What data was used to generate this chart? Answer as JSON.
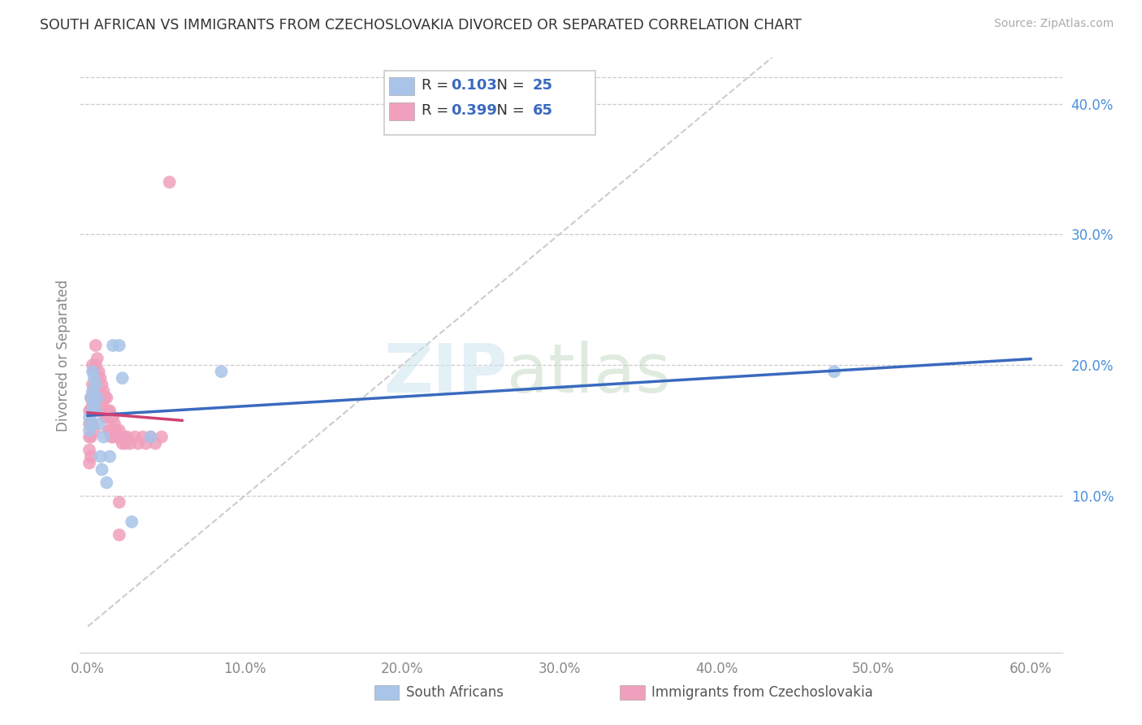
{
  "title": "SOUTH AFRICAN VS IMMIGRANTS FROM CZECHOSLOVAKIA DIVORCED OR SEPARATED CORRELATION CHART",
  "source": "Source: ZipAtlas.com",
  "ylabel": "Divorced or Separated",
  "series1_label": "South Africans",
  "series1_color": "#a8c4e8",
  "series1_line_color": "#3a6abf",
  "series1_R": "0.103",
  "series1_N": "25",
  "series2_label": "Immigrants from Czechoslovakia",
  "series2_color": "#f0a0bc",
  "series2_line_color": "#d04070",
  "series2_R": "0.399",
  "series2_N": "65",
  "xlim": [
    -0.005,
    0.62
  ],
  "ylim": [
    -0.02,
    0.435
  ],
  "xticks": [
    0.0,
    0.1,
    0.2,
    0.3,
    0.4,
    0.5,
    0.6
  ],
  "yticks": [
    0.1,
    0.2,
    0.3,
    0.4
  ],
  "right_yticks": [
    0.1,
    0.2,
    0.3,
    0.4
  ],
  "background_color": "#ffffff",
  "grid_color": "#cccccc",
  "series1_x": [
    0.001,
    0.001,
    0.002,
    0.002,
    0.003,
    0.003,
    0.003,
    0.004,
    0.004,
    0.005,
    0.005,
    0.006,
    0.007,
    0.008,
    0.009,
    0.01,
    0.012,
    0.014,
    0.016,
    0.02,
    0.022,
    0.028,
    0.04,
    0.085,
    0.475
  ],
  "series1_y": [
    0.16,
    0.15,
    0.175,
    0.155,
    0.195,
    0.18,
    0.165,
    0.19,
    0.17,
    0.185,
    0.165,
    0.175,
    0.155,
    0.13,
    0.12,
    0.145,
    0.11,
    0.13,
    0.215,
    0.215,
    0.19,
    0.08,
    0.145,
    0.195,
    0.195
  ],
  "series2_x": [
    0.001,
    0.001,
    0.001,
    0.001,
    0.001,
    0.002,
    0.002,
    0.002,
    0.002,
    0.002,
    0.003,
    0.003,
    0.003,
    0.003,
    0.004,
    0.004,
    0.004,
    0.004,
    0.005,
    0.005,
    0.005,
    0.005,
    0.006,
    0.006,
    0.006,
    0.007,
    0.007,
    0.008,
    0.008,
    0.009,
    0.009,
    0.01,
    0.01,
    0.011,
    0.011,
    0.012,
    0.012,
    0.013,
    0.013,
    0.014,
    0.014,
    0.015,
    0.015,
    0.016,
    0.016,
    0.017,
    0.018,
    0.019,
    0.02,
    0.021,
    0.022,
    0.023,
    0.024,
    0.025,
    0.027,
    0.03,
    0.032,
    0.035,
    0.037,
    0.04,
    0.043,
    0.047,
    0.052,
    0.02,
    0.02
  ],
  "series2_y": [
    0.165,
    0.155,
    0.145,
    0.135,
    0.125,
    0.175,
    0.165,
    0.155,
    0.145,
    0.13,
    0.2,
    0.185,
    0.17,
    0.155,
    0.195,
    0.18,
    0.165,
    0.15,
    0.215,
    0.2,
    0.185,
    0.17,
    0.205,
    0.19,
    0.175,
    0.195,
    0.18,
    0.19,
    0.175,
    0.185,
    0.17,
    0.18,
    0.165,
    0.175,
    0.16,
    0.175,
    0.16,
    0.165,
    0.15,
    0.165,
    0.15,
    0.16,
    0.145,
    0.16,
    0.145,
    0.155,
    0.15,
    0.145,
    0.15,
    0.145,
    0.14,
    0.145,
    0.14,
    0.145,
    0.14,
    0.145,
    0.14,
    0.145,
    0.14,
    0.145,
    0.14,
    0.145,
    0.34,
    0.07,
    0.095
  ],
  "legend_bottom": [
    "South Africans",
    "Immigrants from Czechoslovakia"
  ]
}
